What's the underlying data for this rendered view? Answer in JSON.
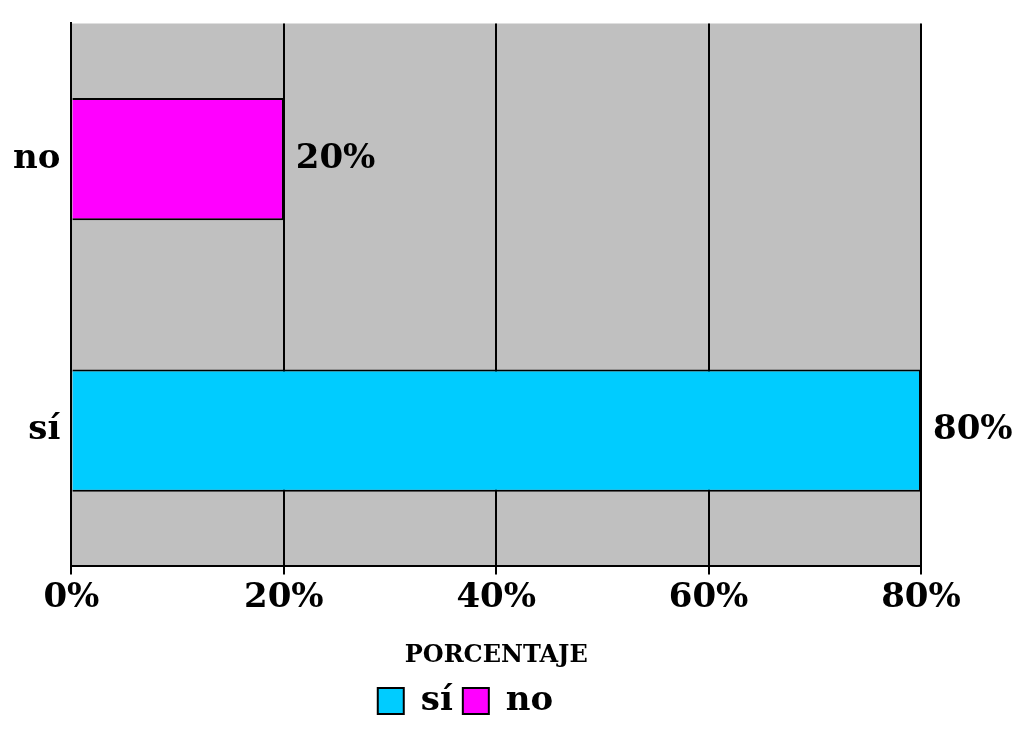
{
  "chart_data": {
    "type": "bar",
    "orientation": "horizontal",
    "xlabel": "PORCENTAJE",
    "categories": [
      "no",
      "sí"
    ],
    "series": [
      {
        "name": "sí",
        "color": "#00ccff",
        "values": [
          null,
          80
        ],
        "value_labels": [
          null,
          "80%"
        ]
      },
      {
        "name": "no",
        "color": "#ff00ff",
        "values": [
          20,
          null
        ],
        "value_labels": [
          "20%",
          null
        ]
      }
    ],
    "xlim": [
      0,
      80
    ],
    "xticks": [
      {
        "value": 0,
        "label": "0%"
      },
      {
        "value": 20,
        "label": "20%"
      },
      {
        "value": 40,
        "label": "40%"
      },
      {
        "value": 60,
        "label": "60%"
      },
      {
        "value": 80,
        "label": "80%"
      }
    ],
    "grid": "x",
    "legend": "bottom"
  }
}
